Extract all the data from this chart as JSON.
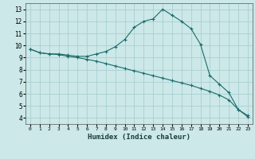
{
  "xlabel": "Humidex (Indice chaleur)",
  "bg_color": "#cce8e8",
  "grid_color": "#aacfcf",
  "line_color": "#1a6b6b",
  "xlim": [
    -0.5,
    23.5
  ],
  "ylim": [
    3.5,
    13.5
  ],
  "xticks": [
    0,
    1,
    2,
    3,
    4,
    5,
    6,
    7,
    8,
    9,
    10,
    11,
    12,
    13,
    14,
    15,
    16,
    17,
    18,
    19,
    20,
    21,
    22,
    23
  ],
  "yticks": [
    4,
    5,
    6,
    7,
    8,
    9,
    10,
    11,
    12,
    13
  ],
  "line1_x": [
    0,
    1,
    2,
    3,
    4,
    5,
    6,
    7,
    8,
    9,
    10,
    11,
    12,
    13,
    14,
    15,
    16,
    17,
    18,
    19,
    20,
    21,
    22,
    23
  ],
  "line1_y": [
    9.7,
    9.4,
    9.3,
    9.3,
    9.2,
    9.1,
    9.1,
    9.3,
    9.5,
    9.9,
    10.5,
    11.5,
    12.0,
    12.2,
    13.0,
    12.5,
    12.0,
    11.4,
    10.1,
    7.5,
    6.8,
    6.1,
    4.7,
    4.2
  ],
  "line2_x": [
    0,
    1,
    2,
    3,
    4,
    5,
    6,
    7,
    8,
    9,
    10,
    11,
    12,
    13,
    14,
    15,
    16,
    17,
    18,
    19,
    20,
    21,
    22,
    23
  ],
  "line2_y": [
    9.7,
    9.4,
    9.3,
    9.25,
    9.1,
    9.0,
    8.85,
    8.7,
    8.5,
    8.3,
    8.1,
    7.9,
    7.7,
    7.5,
    7.3,
    7.1,
    6.9,
    6.7,
    6.45,
    6.2,
    5.9,
    5.5,
    4.7,
    4.1
  ]
}
